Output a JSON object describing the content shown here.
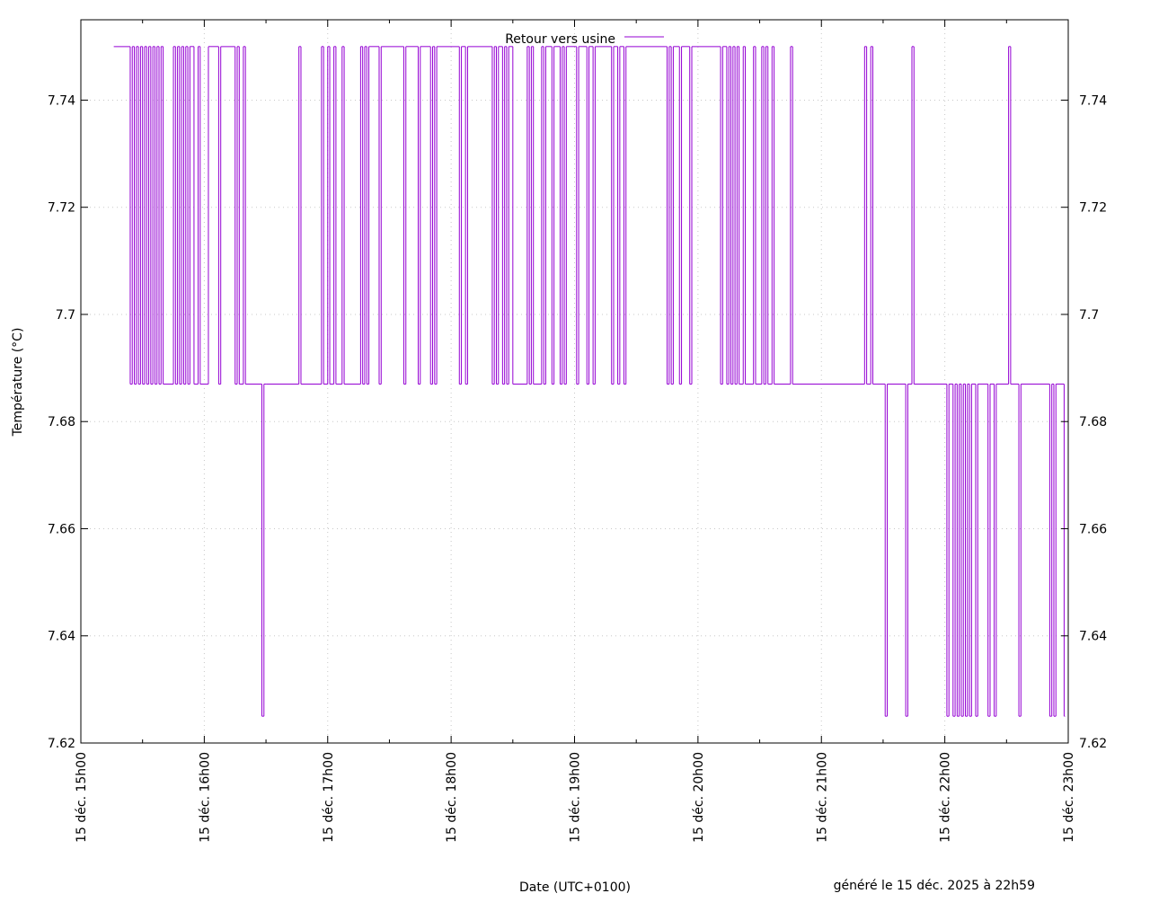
{
  "chart_data": {
    "type": "line",
    "title": "",
    "xlabel": "Date (UTC+0100)",
    "ylabel": "Température (°C)",
    "footer": "généré le 15 déc. 2025 à 22h59",
    "xlim": [
      "2025-12-15T15:00",
      "2025-12-15T23:00"
    ],
    "ylim": [
      7.62,
      7.755
    ],
    "y_ticks": [
      "7.62",
      "7.64",
      "7.66",
      "7.68",
      "7.7",
      "7.72",
      "7.74"
    ],
    "y_tick_values": [
      7.62,
      7.64,
      7.66,
      7.68,
      7.7,
      7.72,
      7.74
    ],
    "x_ticks": [
      "15 déc. 15h00",
      "15 déc. 16h00",
      "15 déc. 17h00",
      "15 déc. 18h00",
      "15 déc. 19h00",
      "15 déc. 20h00",
      "15 déc. 21h00",
      "15 déc. 22h00",
      "15 déc. 23h00"
    ],
    "x_tick_values": [
      "15:00",
      "16:00",
      "17:00",
      "18:00",
      "19:00",
      "20:00",
      "21:00",
      "22:00",
      "23:00"
    ],
    "x_minor_ticks": [
      "15:30",
      "16:30",
      "17:30",
      "18:30",
      "19:30",
      "20:30",
      "21:30",
      "22:30"
    ],
    "grid": true,
    "mirror_y_axis": true,
    "legend_position": "top-center",
    "series": [
      {
        "name": "Retour vers usine",
        "color": "#9400d3",
        "step": true,
        "x": [
          "15:16",
          "15:24",
          "15:25",
          "15:26",
          "15:27",
          "15:28",
          "15:29",
          "15:30",
          "15:31",
          "15:32",
          "15:33",
          "15:34",
          "15:35",
          "15:36",
          "15:37",
          "15:38",
          "15:39",
          "15:40",
          "15:45",
          "15:46",
          "15:47",
          "15:48",
          "15:49",
          "15:50",
          "15:51",
          "15:52",
          "15:53",
          "15:55",
          "15:57",
          "15:58",
          "16:02",
          "16:07",
          "16:08",
          "16:15",
          "16:16",
          "16:17",
          "16:19",
          "16:20",
          "16:28",
          "16:29",
          "16:30",
          "16:46",
          "16:47",
          "16:57",
          "16:58",
          "17:00",
          "17:01",
          "17:03",
          "17:04",
          "17:07",
          "17:08",
          "17:16",
          "17:17",
          "17:18",
          "17:19",
          "17:20",
          "17:25",
          "17:26",
          "17:37",
          "17:38",
          "17:44",
          "17:45",
          "17:50",
          "17:51",
          "17:52",
          "17:53",
          "18:04",
          "18:05",
          "18:07",
          "18:08",
          "18:20",
          "18:21",
          "18:22",
          "18:23",
          "18:25",
          "18:26",
          "18:27",
          "18:28",
          "18:30",
          "18:37",
          "18:38",
          "18:39",
          "18:40",
          "18:44",
          "18:45",
          "18:46",
          "18:49",
          "18:50",
          "18:53",
          "18:54",
          "18:55",
          "18:56",
          "19:01",
          "19:02",
          "19:06",
          "19:07",
          "19:09",
          "19:10",
          "19:18",
          "19:19",
          "19:21",
          "19:22",
          "19:24",
          "19:25",
          "19:45",
          "19:46",
          "19:47",
          "19:48",
          "19:51",
          "19:52",
          "19:56",
          "19:57",
          "20:11",
          "20:12",
          "20:14",
          "20:15",
          "20:16",
          "20:17",
          "20:18",
          "20:19",
          "20:20",
          "20:22",
          "20:23",
          "20:27",
          "20:28",
          "20:31",
          "20:32",
          "20:33",
          "20:34",
          "20:36",
          "20:37",
          "20:45",
          "20:46",
          "21:21",
          "21:22",
          "21:24",
          "21:25",
          "21:31",
          "21:32",
          "21:41",
          "21:42",
          "21:44",
          "21:45",
          "22:01",
          "22:02",
          "22:04",
          "22:05",
          "22:06",
          "22:07",
          "22:08",
          "22:09",
          "22:10",
          "22:11",
          "22:12",
          "22:13",
          "22:15",
          "22:16",
          "22:21",
          "22:22",
          "22:24",
          "22:25",
          "22:31",
          "22:32",
          "22:36",
          "22:37",
          "22:51",
          "22:52",
          "22:53",
          "22:54",
          "22:58"
        ],
        "y": [
          7.75,
          7.687,
          7.75,
          7.687,
          7.75,
          7.687,
          7.75,
          7.687,
          7.75,
          7.687,
          7.75,
          7.687,
          7.75,
          7.687,
          7.75,
          7.687,
          7.75,
          7.687,
          7.75,
          7.687,
          7.75,
          7.687,
          7.75,
          7.687,
          7.75,
          7.687,
          7.75,
          7.687,
          7.75,
          7.687,
          7.75,
          7.687,
          7.75,
          7.687,
          7.75,
          7.687,
          7.75,
          7.687,
          7.625,
          7.687,
          7.687,
          7.75,
          7.687,
          7.75,
          7.687,
          7.75,
          7.687,
          7.75,
          7.687,
          7.75,
          7.687,
          7.75,
          7.687,
          7.75,
          7.687,
          7.75,
          7.687,
          7.75,
          7.687,
          7.75,
          7.687,
          7.75,
          7.687,
          7.75,
          7.687,
          7.75,
          7.687,
          7.75,
          7.687,
          7.75,
          7.687,
          7.75,
          7.687,
          7.75,
          7.687,
          7.75,
          7.687,
          7.75,
          7.687,
          7.75,
          7.687,
          7.75,
          7.687,
          7.75,
          7.687,
          7.75,
          7.687,
          7.75,
          7.687,
          7.75,
          7.687,
          7.75,
          7.687,
          7.75,
          7.687,
          7.75,
          7.687,
          7.75,
          7.687,
          7.75,
          7.687,
          7.75,
          7.687,
          7.75,
          7.687,
          7.75,
          7.687,
          7.75,
          7.687,
          7.75,
          7.687,
          7.75,
          7.687,
          7.75,
          7.687,
          7.75,
          7.687,
          7.75,
          7.687,
          7.75,
          7.687,
          7.75,
          7.687,
          7.75,
          7.687,
          7.75,
          7.687,
          7.75,
          7.687,
          7.75,
          7.687,
          7.75,
          7.687,
          7.75,
          7.687,
          7.75,
          7.687,
          7.625,
          7.687,
          7.625,
          7.687,
          7.75,
          7.687,
          7.625,
          7.687,
          7.625,
          7.687,
          7.625,
          7.687,
          7.625,
          7.687,
          7.625,
          7.687,
          7.625,
          7.687,
          7.625,
          7.687,
          7.625,
          7.687,
          7.625,
          7.687,
          7.75,
          7.687,
          7.625,
          7.687,
          7.625,
          7.687,
          7.625,
          7.687,
          7.625
        ]
      }
    ]
  }
}
